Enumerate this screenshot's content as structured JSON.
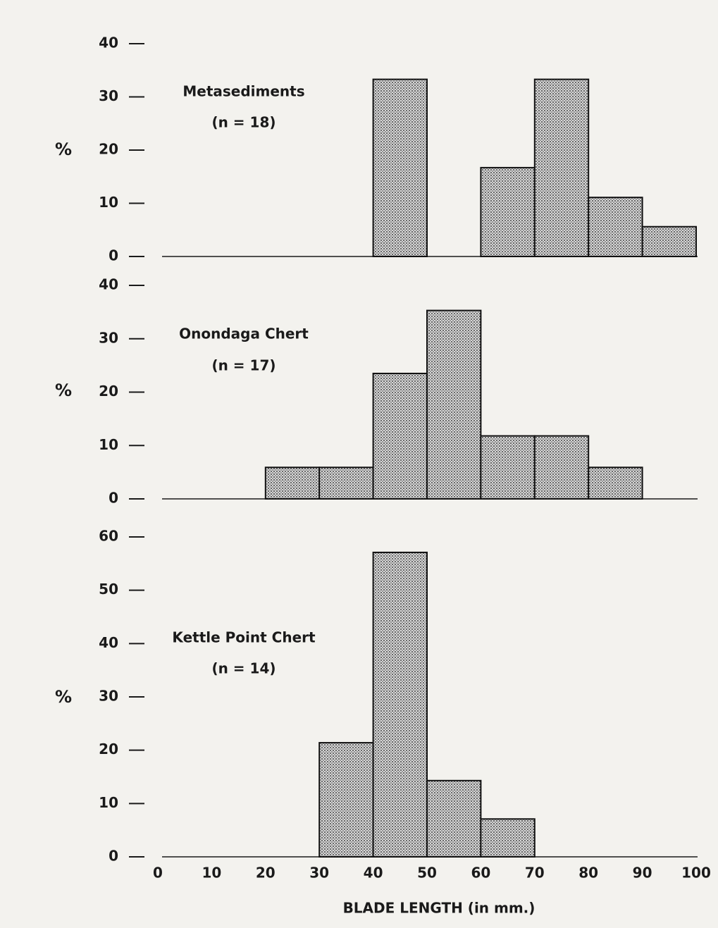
{
  "chart_data": [
    {
      "type": "histogram",
      "title": "Metasediments",
      "subtitle": "(n = 18)",
      "ylabel": "%",
      "bins": [
        0,
        10,
        20,
        30,
        40,
        50,
        60,
        70,
        80,
        90,
        100
      ],
      "values": [
        0,
        0,
        0,
        0,
        33.3,
        0,
        16.7,
        33.3,
        11.1,
        5.6
      ],
      "xlim": [
        0,
        100
      ],
      "ylim": [
        0,
        40
      ],
      "yticks": [
        0,
        10,
        20,
        30,
        40
      ],
      "color": "#555555"
    },
    {
      "type": "histogram",
      "title": "Onondaga Chert",
      "subtitle": "(n = 17)",
      "ylabel": "%",
      "bins": [
        0,
        10,
        20,
        30,
        40,
        50,
        60,
        70,
        80,
        90,
        100
      ],
      "values": [
        0,
        0,
        5.9,
        5.9,
        23.5,
        35.3,
        11.8,
        11.8,
        5.9,
        0
      ],
      "xlim": [
        0,
        100
      ],
      "ylim": [
        0,
        40
      ],
      "yticks": [
        0,
        10,
        20,
        30,
        40
      ],
      "color": "#555555"
    },
    {
      "type": "histogram",
      "title": "Kettle Point Chert",
      "subtitle": "(n = 14)",
      "ylabel": "%",
      "xlabel": "BLADE LENGTH (in mm.)",
      "bins": [
        0,
        10,
        20,
        30,
        40,
        50,
        60,
        70,
        80,
        90,
        100
      ],
      "values": [
        0,
        0,
        0,
        21.4,
        57.1,
        14.3,
        7.1,
        0,
        0,
        0
      ],
      "xlim": [
        0,
        100
      ],
      "xticks": [
        0,
        10,
        20,
        30,
        40,
        50,
        60,
        70,
        80,
        90,
        100
      ],
      "ylim": [
        0,
        60
      ],
      "yticks": [
        0,
        10,
        20,
        30,
        40,
        50,
        60
      ],
      "color": "#555555"
    }
  ]
}
